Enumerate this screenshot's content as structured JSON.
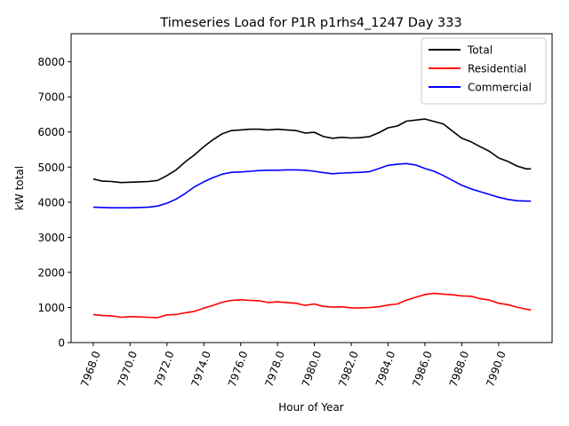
{
  "chart_data": {
    "type": "line",
    "title": "Timeseries Load for P1R p1rhs4_1247  Day 333",
    "xlabel": "Hour of Year",
    "ylabel": "kW total",
    "xlim": [
      7966.8,
      7992.9
    ],
    "ylim": [
      0,
      8800
    ],
    "grid": false,
    "legend_position": "top-right",
    "xticks": [
      7968,
      7970,
      7972,
      7974,
      7976,
      7978,
      7980,
      7982,
      7984,
      7986,
      7988,
      7990
    ],
    "xtick_labels": [
      "7968.0",
      "7970.0",
      "7972.0",
      "7974.0",
      "7976.0",
      "7978.0",
      "7980.0",
      "7982.0",
      "7984.0",
      "7986.0",
      "7988.0",
      "7990.0"
    ],
    "yticks": [
      0,
      1000,
      2000,
      3000,
      4000,
      5000,
      6000,
      7000,
      8000
    ],
    "ytick_labels": [
      "0",
      "1000",
      "2000",
      "3000",
      "4000",
      "5000",
      "6000",
      "7000",
      "8000"
    ],
    "x": [
      7968.0,
      7968.5,
      7969.0,
      7969.5,
      7970.0,
      7970.5,
      7971.0,
      7971.5,
      7972.0,
      7972.5,
      7973.0,
      7973.5,
      7974.0,
      7974.5,
      7975.0,
      7975.5,
      7976.0,
      7976.5,
      7977.0,
      7977.5,
      7978.0,
      7978.5,
      7979.0,
      7979.5,
      7980.0,
      7980.5,
      7981.0,
      7981.5,
      7982.0,
      7982.5,
      7983.0,
      7983.5,
      7984.0,
      7984.5,
      7985.0,
      7985.5,
      7986.0,
      7986.5,
      7987.0,
      7987.5,
      7988.0,
      7988.5,
      7989.0,
      7989.5,
      7990.0,
      7990.5,
      7991.0,
      7991.5,
      7991.75
    ],
    "series": [
      {
        "name": "Total",
        "color": "#000000",
        "values": [
          4660,
          4600,
          4590,
          4560,
          4570,
          4580,
          4590,
          4620,
          4760,
          4920,
          5150,
          5350,
          5580,
          5780,
          5950,
          6040,
          6060,
          6080,
          6080,
          6060,
          6080,
          6060,
          6040,
          5970,
          5990,
          5870,
          5820,
          5850,
          5830,
          5840,
          5870,
          5980,
          6120,
          6170,
          6310,
          6340,
          6370,
          6300,
          6230,
          6020,
          5820,
          5720,
          5580,
          5450,
          5260,
          5160,
          5030,
          4950,
          4950
        ]
      },
      {
        "name": "Residential",
        "color": "#ff0000",
        "values": [
          800,
          770,
          760,
          720,
          740,
          730,
          720,
          710,
          790,
          800,
          850,
          890,
          980,
          1060,
          1150,
          1200,
          1220,
          1200,
          1190,
          1140,
          1160,
          1140,
          1120,
          1060,
          1100,
          1030,
          1010,
          1020,
          990,
          990,
          1000,
          1020,
          1070,
          1100,
          1210,
          1290,
          1370,
          1400,
          1380,
          1360,
          1330,
          1320,
          1250,
          1210,
          1120,
          1080,
          1010,
          950,
          930
        ]
      },
      {
        "name": "Commercial",
        "color": "#0000ff",
        "values": [
          3860,
          3850,
          3840,
          3840,
          3840,
          3850,
          3860,
          3890,
          3970,
          4090,
          4250,
          4440,
          4580,
          4700,
          4800,
          4850,
          4860,
          4880,
          4900,
          4910,
          4910,
          4920,
          4920,
          4910,
          4880,
          4840,
          4810,
          4830,
          4840,
          4850,
          4870,
          4960,
          5050,
          5080,
          5100,
          5060,
          4960,
          4880,
          4760,
          4620,
          4480,
          4380,
          4300,
          4220,
          4140,
          4080,
          4040,
          4030,
          4030
        ]
      }
    ]
  }
}
